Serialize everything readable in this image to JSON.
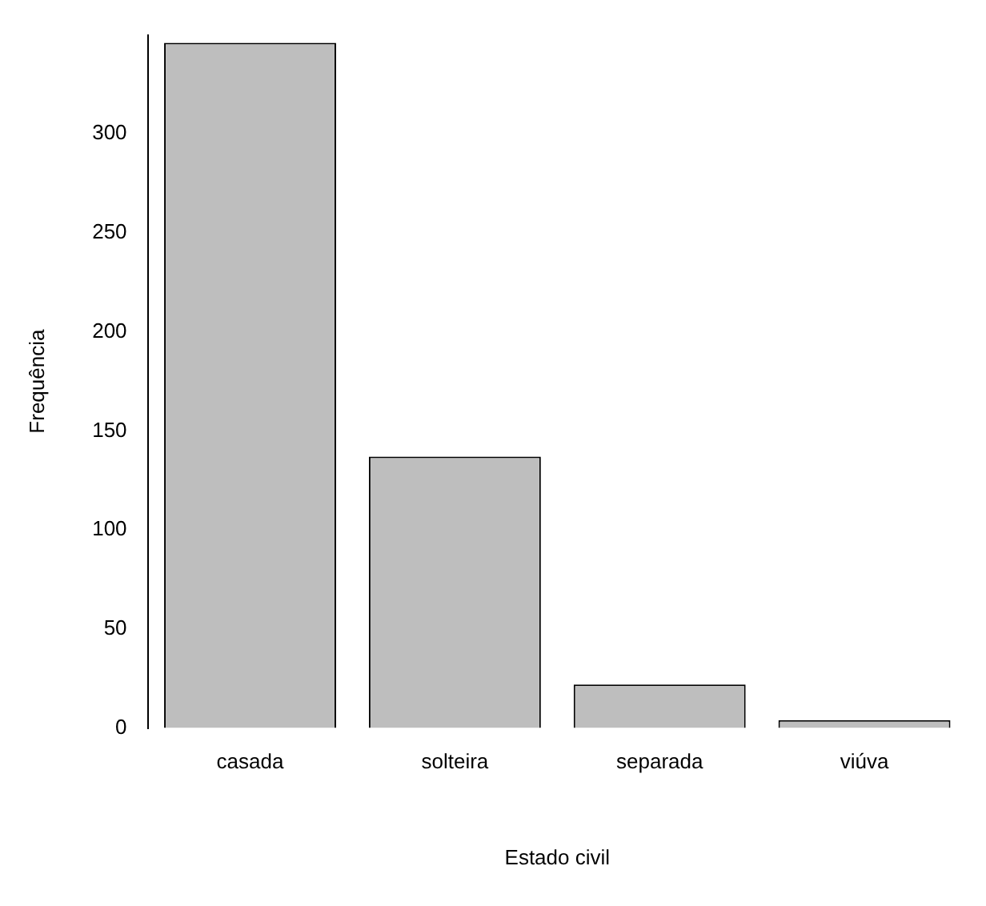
{
  "chart_data": {
    "type": "bar",
    "xlabel": "Estado civil",
    "ylabel": "Frequência",
    "categories": [
      "casada",
      "solteira",
      "separada",
      "viúva"
    ],
    "values": [
      346,
      137,
      22,
      4
    ],
    "color": "#bebebe",
    "ylim": [
      0,
      350
    ],
    "yticks": [
      0,
      50,
      100,
      150,
      200,
      250,
      300
    ],
    "grid": false,
    "legend": false
  }
}
